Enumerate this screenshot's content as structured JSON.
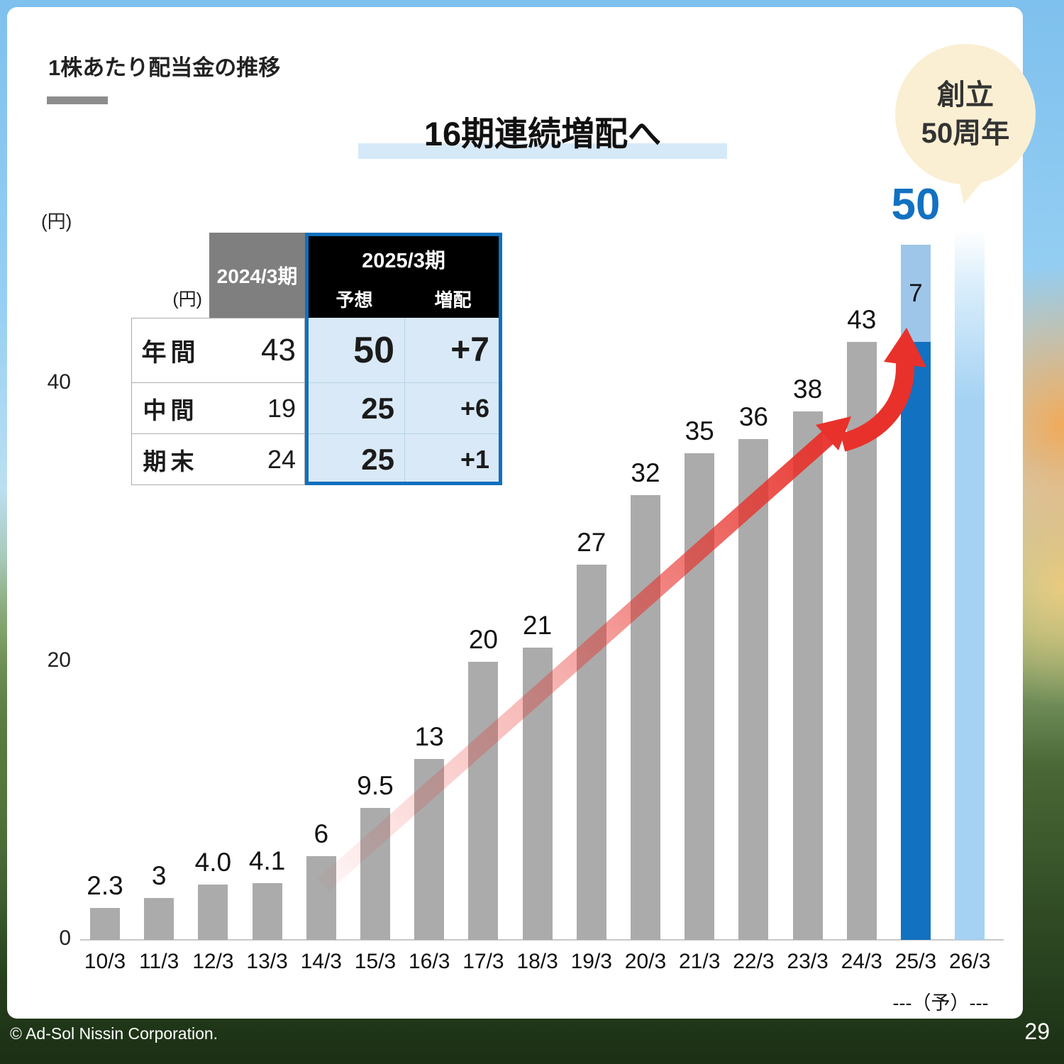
{
  "page": {
    "title": "1株あたり配当金の推移",
    "headline": "16期連続増配へ",
    "anniversary_badge": {
      "line1": "創立",
      "line2": "50周年"
    },
    "copyright": "© Ad-Sol Nissin Corporation.",
    "page_number": "29"
  },
  "chart_data": {
    "type": "bar",
    "title": "16期連続増配へ",
    "subtitle": "1株あたり配当金の推移",
    "ylabel": "(円)",
    "ylim": [
      0,
      52
    ],
    "yticks": [
      0,
      20,
      40
    ],
    "grid": false,
    "legend": false,
    "categories": [
      "10/3",
      "11/3",
      "12/3",
      "13/3",
      "14/3",
      "15/3",
      "16/3",
      "17/3",
      "18/3",
      "19/3",
      "20/3",
      "21/3",
      "22/3",
      "23/3",
      "24/3",
      "25/3",
      "26/3"
    ],
    "values": [
      2.3,
      3,
      4.0,
      4.1,
      6,
      9.5,
      13,
      20,
      21,
      27,
      32,
      35,
      36,
      38,
      43,
      50,
      null
    ],
    "forecast_note": "---（予）---",
    "bars": [
      {
        "category": "10/3",
        "value": 2.3,
        "label": "2.3",
        "style": "gray"
      },
      {
        "category": "11/3",
        "value": 3,
        "label": "3",
        "style": "gray"
      },
      {
        "category": "12/3",
        "value": 4.0,
        "label": "4.0",
        "style": "gray"
      },
      {
        "category": "13/3",
        "value": 4.1,
        "label": "4.1",
        "style": "gray"
      },
      {
        "category": "14/3",
        "value": 6,
        "label": "6",
        "style": "gray"
      },
      {
        "category": "15/3",
        "value": 9.5,
        "label": "9.5",
        "style": "gray"
      },
      {
        "category": "16/3",
        "value": 13,
        "label": "13",
        "style": "gray"
      },
      {
        "category": "17/3",
        "value": 20,
        "label": "20",
        "style": "gray"
      },
      {
        "category": "18/3",
        "value": 21,
        "label": "21",
        "style": "gray"
      },
      {
        "category": "19/3",
        "value": 27,
        "label": "27",
        "style": "gray"
      },
      {
        "category": "20/3",
        "value": 32,
        "label": "32",
        "style": "gray"
      },
      {
        "category": "21/3",
        "value": 35,
        "label": "35",
        "style": "gray"
      },
      {
        "category": "22/3",
        "value": 36,
        "label": "36",
        "style": "gray"
      },
      {
        "category": "23/3",
        "value": 38,
        "label": "38",
        "style": "gray"
      },
      {
        "category": "24/3",
        "value": 43,
        "label": "43",
        "style": "gray"
      },
      {
        "category": "25/3",
        "value": 50,
        "label": "50",
        "label_style": "big-blue",
        "style": "stacked",
        "segments": [
          {
            "value": 43,
            "color_key": "bar_dark_blue"
          },
          {
            "value": 7,
            "color_key": "bar_light_blue",
            "label": "7"
          }
        ]
      },
      {
        "category": "26/3",
        "value": null,
        "units": 51,
        "label": "",
        "style": "anniversary"
      }
    ],
    "colors": {
      "bar_gray": "#ABABAB",
      "bar_dark_blue": "#1271C1",
      "bar_light_blue": "#9DC6E9",
      "bar_anniversary": "#A5D2F3",
      "value_blue": "#1271C1",
      "arrow_red": "#E8312B",
      "headline_bar": "#D6E9F8",
      "anniv_badge_bg": "#FAEFD2",
      "table_blue_border": "#1070BE",
      "table_blue_bg": "#D9E9F7",
      "table_header_gray": "#7F7F7F",
      "table_header_black": "#000000"
    }
  },
  "table": {
    "unit": "(円)",
    "col_2024": "2024/3期",
    "col_2025": "2025/3期",
    "sub_forecast": "予想",
    "sub_increase": "増配",
    "rows": [
      {
        "label": "年間",
        "y2024": "43",
        "forecast": "50",
        "increase": "+7"
      },
      {
        "label": "中間",
        "y2024": "19",
        "forecast": "25",
        "increase": "+6"
      },
      {
        "label": "期末",
        "y2024": "24",
        "forecast": "25",
        "increase": "+1"
      }
    ]
  }
}
